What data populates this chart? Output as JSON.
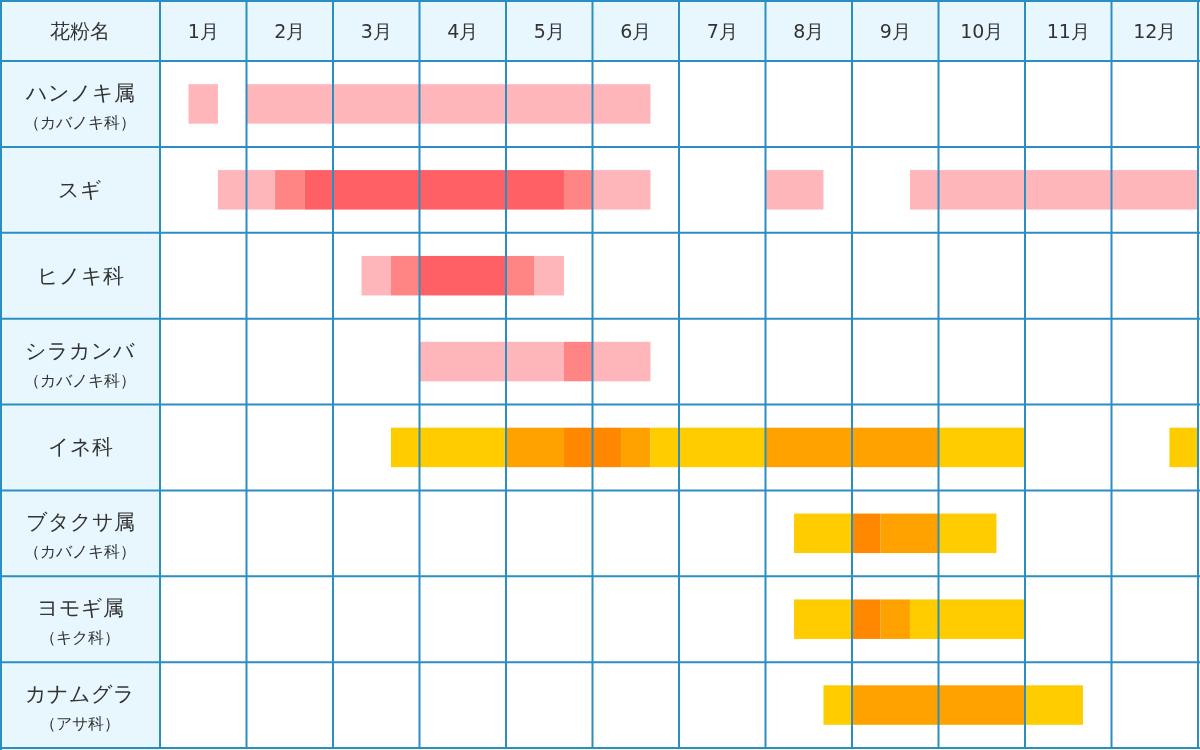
{
  "chart_data": {
    "type": "bar",
    "orientation": "horizontal",
    "ylabel": "花粉名",
    "categories": [
      "ハンノキ属（カバノキ科）",
      "スギ",
      "ヒノキ科",
      "シラカンバ（カバノキ科）",
      "イネ科",
      "ブタクサ属（カバノキ科）",
      "ヨモギ属（キク科）",
      "カナムグラ（アサ科）"
    ],
    "xlim": [
      0,
      12
    ],
    "xticks": [
      {
        "value": 0,
        "label": null
      },
      {
        "value": 0.5,
        "label": "1月"
      },
      {
        "value": 1,
        "label": null
      },
      {
        "value": 1.5,
        "label": "2月"
      },
      {
        "value": 2,
        "label": null
      },
      {
        "value": 2.5,
        "label": "3月"
      },
      {
        "value": 3,
        "label": null
      },
      {
        "value": 3.5,
        "label": "4月"
      },
      {
        "value": 4,
        "label": null
      },
      {
        "value": 4.5,
        "label": "5月"
      },
      {
        "value": 5,
        "label": null
      },
      {
        "value": 5.5,
        "label": "6月"
      },
      {
        "value": 6,
        "label": null
      },
      {
        "value": 6.5,
        "label": "7月"
      },
      {
        "value": 7,
        "label": null
      },
      {
        "value": 7.5,
        "label": "8月"
      },
      {
        "value": 8,
        "label": null
      },
      {
        "value": 8.5,
        "label": "9月"
      },
      {
        "value": 9,
        "label": null
      },
      {
        "value": 9.5,
        "label": "10月"
      },
      {
        "value": 10,
        "label": null
      },
      {
        "value": 10.5,
        "label": "11月"
      },
      {
        "value": 11,
        "label": null
      },
      {
        "value": 11.5,
        "label": "12月"
      },
      {
        "value": 12,
        "label": null
      }
    ],
    "grid": true,
    "series": [
      {
        "base": [
          0.33,
          0.67,
          2.33,
          3,
          2.67,
          7.33,
          7.33,
          7.67
        ],
        "values": [
          0.34,
          0.66,
          0.34,
          1.67,
          1.33,
          0.67,
          0.67,
          0.33
        ],
        "colors": [
          "#ffb6bb",
          "#ffb6bb",
          "#ffb6bb",
          "#ffb6bb",
          "#ffcc00",
          "#ffcc00",
          "#ffcc00",
          "#ffcc00"
        ]
      },
      {
        "base": [
          1,
          1.33,
          2.67,
          4.67,
          4,
          8,
          8,
          8
        ],
        "values": [
          4.67,
          0.34,
          0.33,
          0.33,
          0.67,
          0.33,
          0.33,
          2
        ],
        "colors": [
          "#ffb6bb",
          "#ff8585",
          "#ff8585",
          "#ff8585",
          "#ffa200",
          "#ff8800",
          "#ff8800",
          "#ffa200"
        ]
      },
      {
        "base": [
          null,
          1.67,
          3,
          5,
          4.67,
          8.33,
          8.33,
          10
        ],
        "values": [
          null,
          3,
          1,
          0.67,
          0.66,
          0.67,
          0.34,
          0.67
        ],
        "colors": [
          null,
          "#ff6066",
          "#ff6066",
          "#ffb6bb",
          "#ff8800",
          "#ffa200",
          "#ffa200",
          "#ffcc00"
        ]
      },
      {
        "base": [
          null,
          4.67,
          4,
          null,
          5.33,
          9,
          8.67,
          null
        ],
        "values": [
          null,
          0.33,
          0.33,
          null,
          0.34,
          0.67,
          1.33,
          null
        ],
        "colors": [
          null,
          "#ff8585",
          "#ff8585",
          null,
          "#ffa200",
          "#ffcc00",
          "#ffcc00",
          null
        ]
      },
      {
        "base": [
          null,
          5,
          4.33,
          null,
          5.67,
          null,
          null,
          null
        ],
        "values": [
          null,
          0.67,
          0.34,
          null,
          1.33,
          null,
          null,
          null
        ],
        "colors": [
          null,
          "#ffb6bb",
          "#ffb6bb",
          null,
          "#ffcc00",
          null,
          null,
          null
        ]
      },
      {
        "base": [
          null,
          7,
          null,
          null,
          7,
          null,
          null,
          null
        ],
        "values": [
          null,
          0.67,
          null,
          null,
          2,
          null,
          null,
          null
        ],
        "colors": [
          null,
          "#ffb6bb",
          null,
          null,
          "#ffa200",
          null,
          null,
          null
        ]
      },
      {
        "base": [
          null,
          8.67,
          null,
          null,
          9,
          null,
          null,
          null
        ],
        "values": [
          null,
          3.33,
          null,
          null,
          1,
          null,
          null,
          null
        ],
        "colors": [
          null,
          "#ffb6bb",
          null,
          null,
          "#ffcc00",
          null,
          null,
          null
        ]
      },
      {
        "base": [
          null,
          null,
          null,
          null,
          11.67,
          null,
          null,
          null
        ],
        "values": [
          null,
          null,
          null,
          null,
          0.33,
          null,
          null,
          null
        ],
        "colors": [
          null,
          null,
          null,
          null,
          "#ffcc00",
          null,
          null,
          null
        ]
      }
    ]
  }
}
